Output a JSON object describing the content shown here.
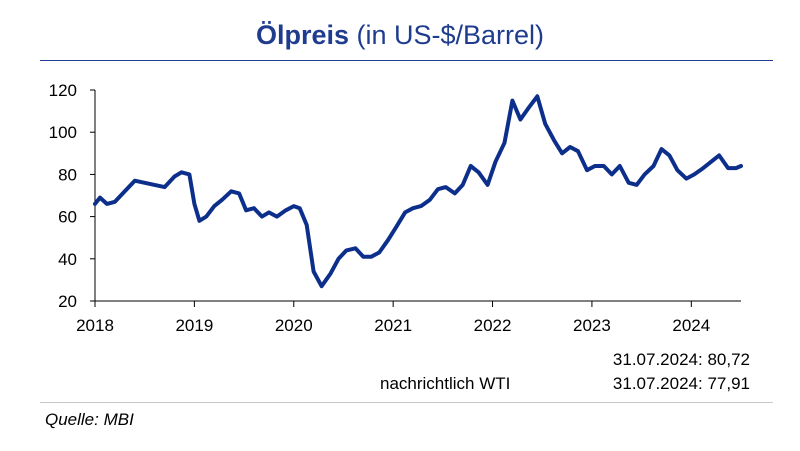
{
  "title": {
    "bold": "Ölpreis",
    "rest": " (in US-$/Barrel)"
  },
  "notes": {
    "value1": "31.07.2024: 80,72",
    "label2": "nachrichtlich WTI",
    "value2": "31.07.2024: 77,91"
  },
  "source": "Quelle: MBI",
  "colors": {
    "line": "#0d2f8c",
    "title": "#1f3c8f"
  },
  "chart_data": {
    "type": "line",
    "title": "Ölpreis (in US-$/Barrel)",
    "xlabel": "",
    "ylabel": "",
    "xlim": [
      2018.0,
      2024.5
    ],
    "ylim": [
      20,
      120
    ],
    "yticks": [
      20,
      40,
      60,
      80,
      100,
      120
    ],
    "xticks": [
      2018,
      2019,
      2020,
      2021,
      2022,
      2023,
      2024
    ],
    "xtick_labels": [
      "2018",
      "2019",
      "2020",
      "2021",
      "2022",
      "2023",
      "2024"
    ],
    "grid": false,
    "legend": "none",
    "series": [
      {
        "x": [
          2018.0,
          2018.05,
          2018.12,
          2018.2,
          2018.3,
          2018.4,
          2018.5,
          2018.6,
          2018.7,
          2018.8,
          2018.87,
          2018.95,
          2019.0,
          2019.05,
          2019.12,
          2019.2,
          2019.28,
          2019.37,
          2019.45,
          2019.52,
          2019.6,
          2019.68,
          2019.75,
          2019.83,
          2019.92,
          2020.0,
          2020.06,
          2020.13,
          2020.2,
          2020.28,
          2020.37,
          2020.45,
          2020.53,
          2020.62,
          2020.7,
          2020.78,
          2020.86,
          2020.95,
          2021.03,
          2021.12,
          2021.2,
          2021.28,
          2021.37,
          2021.45,
          2021.53,
          2021.62,
          2021.7,
          2021.78,
          2021.86,
          2021.95,
          2022.03,
          2022.12,
          2022.2,
          2022.28,
          2022.37,
          2022.45,
          2022.53,
          2022.62,
          2022.7,
          2022.78,
          2022.86,
          2022.95,
          2023.03,
          2023.12,
          2023.2,
          2023.28,
          2023.37,
          2023.45,
          2023.53,
          2023.62,
          2023.7,
          2023.78,
          2023.86,
          2023.95,
          2024.03,
          2024.12,
          2024.2,
          2024.28,
          2024.37,
          2024.45,
          2024.5
        ],
        "values": [
          66,
          69,
          66,
          67,
          72,
          77,
          76,
          75,
          74,
          79,
          81,
          80,
          66,
          58,
          60,
          65,
          68,
          72,
          71,
          63,
          64,
          60,
          62,
          60,
          63,
          65,
          64,
          56,
          34,
          27,
          33,
          40,
          44,
          45,
          41,
          41,
          43,
          49,
          55,
          62,
          64,
          65,
          68,
          73,
          74,
          71,
          75,
          84,
          81,
          75,
          86,
          95,
          115,
          106,
          112,
          117,
          104,
          96,
          90,
          93,
          91,
          82,
          84,
          84,
          80,
          84,
          76,
          75,
          80,
          84,
          92,
          89,
          82,
          78,
          80,
          83,
          86,
          89,
          83,
          83,
          84
        ]
      }
    ]
  }
}
